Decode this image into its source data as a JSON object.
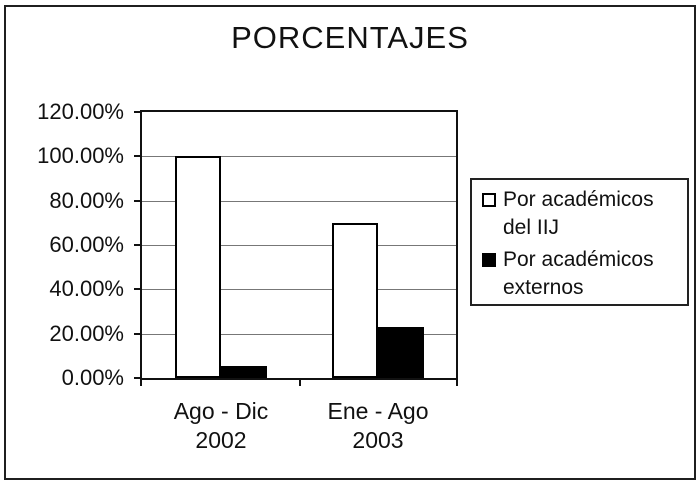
{
  "title": "PORCENTAJES",
  "chart_data": {
    "type": "bar",
    "title": "PORCENTAJES",
    "categories": [
      {
        "label_lines": [
          "Ago - Dic",
          "2002"
        ]
      },
      {
        "label_lines": [
          "Ene - Ago",
          "2003"
        ]
      }
    ],
    "series": [
      {
        "name": "Por académicos del IIJ",
        "fill": "#ffffff",
        "style": "white",
        "values": [
          100,
          70
        ]
      },
      {
        "name": "Por académicos externos",
        "fill": "#000000",
        "style": "black",
        "values": [
          5.5,
          23
        ]
      }
    ],
    "xlabel": "",
    "ylabel": "",
    "ylim": [
      0,
      120
    ],
    "ytick_step": 20,
    "ytick_labels": [
      "0.00%",
      "20.00%",
      "40.00%",
      "60.00%",
      "80.00%",
      "100.00%",
      "120.00%"
    ],
    "grid": true,
    "legend_position": "right",
    "plot_background": "#ffffff"
  },
  "colors": {
    "frame_border": "#1f1f1f",
    "plot_border": "#111111",
    "gridline": "#777777",
    "bar_white_fill": "#ffffff",
    "bar_black_fill": "#000000",
    "text": "#111111",
    "background": "#ffffff"
  }
}
